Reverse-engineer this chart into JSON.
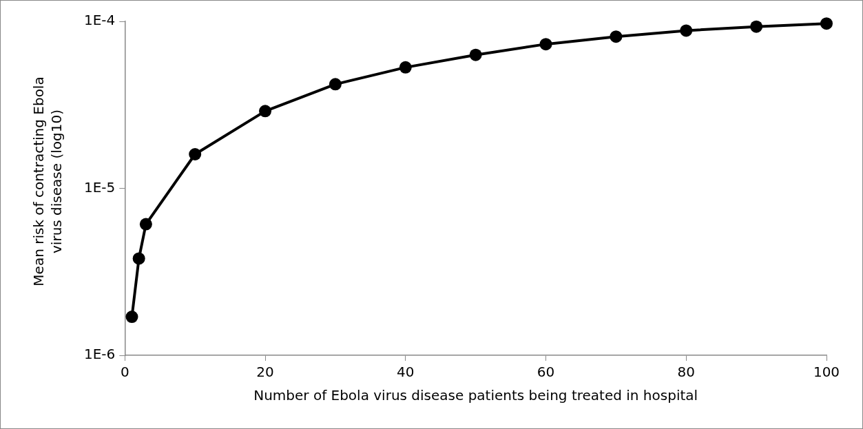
{
  "chart_data": {
    "type": "line",
    "xlabel": "Number of Ebola virus disease patients being treated in hospital",
    "ylabel": "Mean risk of contracting Ebola virus disease (log10)",
    "x": [
      1,
      2,
      3,
      10,
      20,
      30,
      40,
      50,
      60,
      70,
      80,
      90,
      100
    ],
    "series": [
      {
        "color": "#000000",
        "values": [
          1.7e-06,
          3.8e-06,
          6.1e-06,
          1.6e-05,
          2.9e-05,
          4.2e-05,
          5.3e-05,
          6.3e-05,
          7.3e-05,
          8.1e-05,
          8.8e-05,
          9.3e-05,
          9.7e-05
        ]
      }
    ],
    "log": "y",
    "xlim": [
      0,
      100
    ],
    "xticks": [
      0,
      20,
      40,
      60,
      80,
      100
    ],
    "ylim": [
      1e-06,
      0.0001
    ],
    "yticks": [
      {
        "value": 1e-06,
        "label": "1E-6"
      },
      {
        "value": 1e-05,
        "label": "1E-5"
      },
      {
        "value": 0.0001,
        "label": "1E-4"
      }
    ],
    "grid": false,
    "legend": false,
    "marker": "circle",
    "line_style": "solid"
  }
}
